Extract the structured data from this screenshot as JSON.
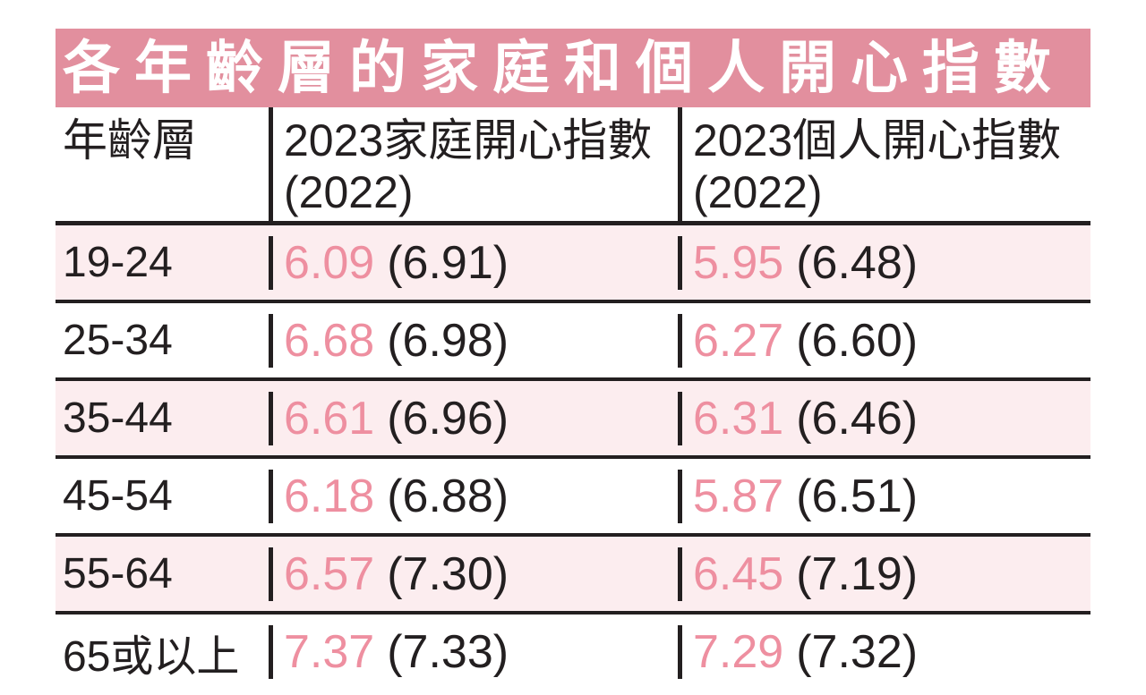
{
  "title": "各年齡層的家庭和個人開心指數",
  "colors": {
    "banner_pink": "#e28f9e",
    "row_stripe_pink": "#fcedef",
    "value_pink": "#ee8fa0",
    "text_black": "#231f20",
    "title_white": "#ffffff"
  },
  "table": {
    "headers": {
      "age": "年齡層",
      "family_line1": "2023家庭開心指數",
      "family_line2": "(2022)",
      "personal_line1": "2023個人開心指數",
      "personal_line2": "(2022)"
    },
    "rows": [
      {
        "age": "19-24",
        "family_now": "6.09",
        "family_prev": "(6.91)",
        "personal_now": "5.95",
        "personal_prev": "(6.48)"
      },
      {
        "age": "25-34",
        "family_now": "6.68",
        "family_prev": "(6.98)",
        "personal_now": "6.27",
        "personal_prev": "(6.60)"
      },
      {
        "age": "35-44",
        "family_now": "6.61",
        "family_prev": "(6.96)",
        "personal_now": "6.31",
        "personal_prev": "(6.46)"
      },
      {
        "age": "45-54",
        "family_now": "6.18",
        "family_prev": "(6.88)",
        "personal_now": "5.87",
        "personal_prev": "(6.51)"
      },
      {
        "age": "55-64",
        "family_now": "6.57",
        "family_prev": "(7.30)",
        "personal_now": "6.45",
        "personal_prev": "(7.19)"
      },
      {
        "age": "65或以上",
        "family_now": "7.37",
        "family_prev": "(7.33)",
        "personal_now": "7.29",
        "personal_prev": "(7.32)"
      }
    ]
  },
  "chart_data": {
    "type": "table",
    "title": "各年齡層的家庭和個人開心指數",
    "columns": [
      "年齡層",
      "2023家庭開心指數 (2022)",
      "2023個人開心指數 (2022)"
    ],
    "categories": [
      "19-24",
      "25-34",
      "35-44",
      "45-54",
      "55-64",
      "65或以上"
    ],
    "series": [
      {
        "name": "2023家庭開心指數",
        "values": [
          6.09,
          6.68,
          6.61,
          6.18,
          6.57,
          7.37
        ]
      },
      {
        "name": "2022家庭開心指數",
        "values": [
          6.91,
          6.98,
          6.96,
          6.88,
          7.3,
          7.33
        ]
      },
      {
        "name": "2023個人開心指數",
        "values": [
          5.95,
          6.27,
          6.31,
          5.87,
          6.45,
          7.29
        ]
      },
      {
        "name": "2022個人開心指數",
        "values": [
          6.48,
          6.6,
          6.46,
          6.51,
          7.19,
          7.32
        ]
      }
    ],
    "layout_hints": {
      "stripe_rows": "odd data rows shaded light pink",
      "current_year_color": "pink",
      "previous_year_format": "parenthesized, black"
    }
  }
}
